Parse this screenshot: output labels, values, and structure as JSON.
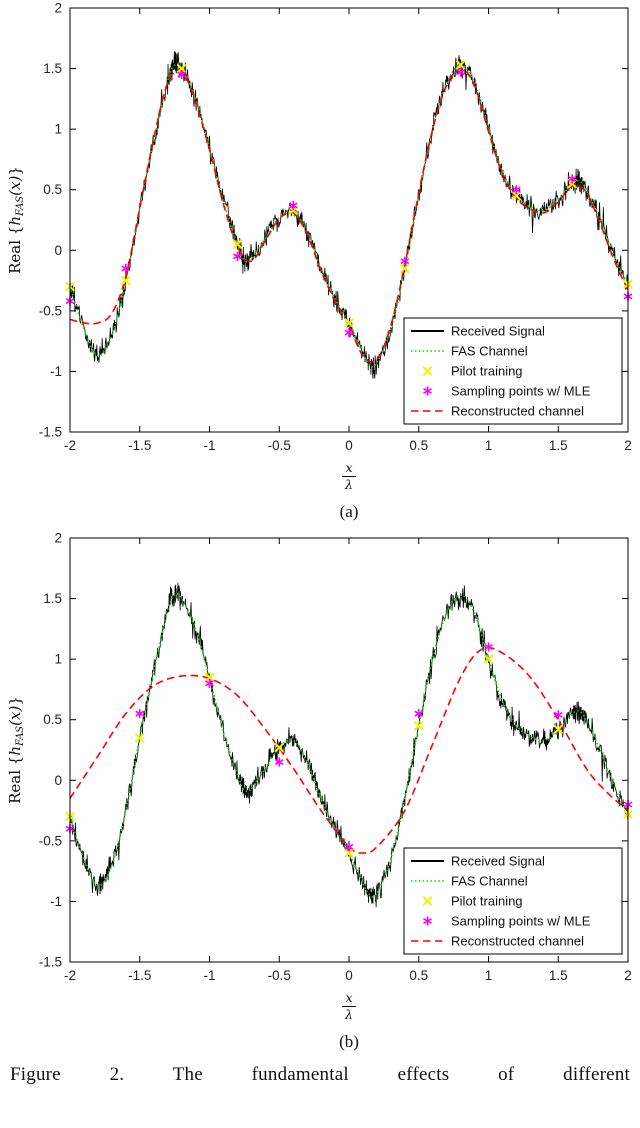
{
  "figure": {
    "caption": "Figure 2.  The fundamental effects of different"
  },
  "chart_data": [
    {
      "type": "line",
      "sublabel": "(a)",
      "xlabel": "x/λ",
      "ylabel": "Real {h_FAS(x)}",
      "xlim": [
        -2,
        2
      ],
      "ylim": [
        -1.5,
        2
      ],
      "xticks": [
        -2,
        -1.5,
        -1,
        -0.5,
        0,
        0.5,
        1,
        1.5,
        2
      ],
      "yticks": [
        -1.5,
        -1,
        -0.5,
        0,
        0.5,
        1,
        1.5,
        2
      ],
      "legend_position": "lower right",
      "grid": false,
      "series": [
        {
          "name": "Received Signal",
          "color": "#000000",
          "line": "solid",
          "width": 0.8,
          "noise": {
            "base": "FAS Channel",
            "amplitude": 0.105
          }
        },
        {
          "name": "FAS Channel",
          "color": "#00dd00",
          "line": "dotted",
          "width": 1.6,
          "x": [
            -2.0,
            -1.9,
            -1.8,
            -1.7,
            -1.6,
            -1.5,
            -1.4,
            -1.3,
            -1.25,
            -1.2,
            -1.1,
            -1.0,
            -0.9,
            -0.8,
            -0.75,
            -0.7,
            -0.6,
            -0.5,
            -0.4,
            -0.3,
            -0.2,
            -0.1,
            0.0,
            0.1,
            0.15,
            0.2,
            0.3,
            0.4,
            0.5,
            0.6,
            0.7,
            0.8,
            0.9,
            1.0,
            1.1,
            1.2,
            1.3,
            1.4,
            1.5,
            1.6,
            1.65,
            1.7,
            1.8,
            1.9,
            2.0
          ],
          "y": [
            -0.3,
            -0.65,
            -0.87,
            -0.7,
            -0.25,
            0.35,
            0.9,
            1.4,
            1.53,
            1.5,
            1.25,
            0.85,
            0.4,
            0.05,
            -0.08,
            -0.07,
            0.1,
            0.27,
            0.33,
            0.15,
            -0.15,
            -0.4,
            -0.6,
            -0.85,
            -0.95,
            -0.93,
            -0.65,
            -0.15,
            0.45,
            1.0,
            1.38,
            1.53,
            1.38,
            1.0,
            0.65,
            0.45,
            0.36,
            0.33,
            0.42,
            0.55,
            0.57,
            0.5,
            0.25,
            -0.05,
            -0.28
          ]
        },
        {
          "name": "Pilot training",
          "color": "#f2f200",
          "marker": "x",
          "x": [
            -2.0,
            -1.6,
            -1.2,
            -0.8,
            -0.4,
            0.0,
            0.4,
            0.8,
            1.2,
            1.6,
            2.0
          ],
          "y": [
            -0.3,
            -0.25,
            1.5,
            0.05,
            0.33,
            -0.6,
            -0.15,
            1.53,
            0.45,
            0.55,
            -0.28
          ]
        },
        {
          "name": "Sampling points w/ MLE",
          "color": "#ff00ff",
          "marker": "*",
          "x": [
            -2.0,
            -1.6,
            -1.2,
            -0.8,
            -0.4,
            0.0,
            0.4,
            0.8,
            1.2,
            1.6,
            2.0
          ],
          "y": [
            -0.42,
            -0.15,
            1.45,
            -0.05,
            0.37,
            -0.68,
            -0.09,
            1.47,
            0.5,
            0.59,
            -0.38
          ]
        },
        {
          "name": "Reconstructed channel",
          "color": "#ff0000",
          "line": "dashed",
          "width": 1.6,
          "x": [
            -2.0,
            -1.9,
            -1.8,
            -1.7,
            -1.6,
            -1.5,
            -1.4,
            -1.3,
            -1.2,
            -1.1,
            -1.0,
            -0.9,
            -0.8,
            -0.7,
            -0.6,
            -0.5,
            -0.4,
            -0.3,
            -0.2,
            -0.1,
            0.0,
            0.1,
            0.2,
            0.3,
            0.4,
            0.5,
            0.6,
            0.7,
            0.8,
            0.9,
            1.0,
            1.1,
            1.2,
            1.3,
            1.4,
            1.5,
            1.6,
            1.7,
            1.8,
            1.9,
            2.0
          ],
          "y": [
            -0.57,
            -0.6,
            -0.6,
            -0.52,
            -0.22,
            0.35,
            0.92,
            1.38,
            1.48,
            1.22,
            0.83,
            0.38,
            0.03,
            -0.09,
            0.08,
            0.26,
            0.31,
            0.13,
            -0.17,
            -0.42,
            -0.62,
            -0.87,
            -0.9,
            -0.62,
            -0.12,
            0.47,
            1.0,
            1.36,
            1.5,
            1.36,
            0.98,
            0.63,
            0.43,
            0.34,
            0.31,
            0.4,
            0.53,
            0.48,
            0.22,
            -0.08,
            -0.33
          ]
        }
      ]
    },
    {
      "type": "line",
      "sublabel": "(b)",
      "xlabel": "x/λ",
      "ylabel": "Real {h_FAS(x)}",
      "xlim": [
        -2,
        2
      ],
      "ylim": [
        -1.5,
        2
      ],
      "xticks": [
        -2,
        -1.5,
        -1,
        -0.5,
        0,
        0.5,
        1,
        1.5,
        2
      ],
      "yticks": [
        -1.5,
        -1,
        -0.5,
        0,
        0.5,
        1,
        1.5,
        2
      ],
      "legend_position": "lower right",
      "grid": false,
      "series": [
        {
          "name": "Received Signal",
          "color": "#000000",
          "line": "solid",
          "width": 0.8,
          "noise": {
            "base": "FAS Channel",
            "amplitude": 0.105
          }
        },
        {
          "name": "FAS Channel",
          "color": "#00dd00",
          "line": "dotted",
          "width": 1.6,
          "x": [
            -2.0,
            -1.9,
            -1.8,
            -1.7,
            -1.6,
            -1.5,
            -1.4,
            -1.3,
            -1.25,
            -1.2,
            -1.1,
            -1.0,
            -0.9,
            -0.8,
            -0.75,
            -0.7,
            -0.6,
            -0.5,
            -0.4,
            -0.3,
            -0.2,
            -0.1,
            0.0,
            0.1,
            0.15,
            0.2,
            0.3,
            0.4,
            0.5,
            0.6,
            0.7,
            0.8,
            0.9,
            1.0,
            1.1,
            1.2,
            1.3,
            1.4,
            1.5,
            1.6,
            1.65,
            1.7,
            1.8,
            1.9,
            2.0
          ],
          "y": [
            -0.3,
            -0.65,
            -0.87,
            -0.7,
            -0.25,
            0.35,
            0.9,
            1.4,
            1.53,
            1.5,
            1.25,
            0.85,
            0.4,
            0.05,
            -0.08,
            -0.07,
            0.1,
            0.27,
            0.33,
            0.15,
            -0.15,
            -0.4,
            -0.6,
            -0.85,
            -0.95,
            -0.93,
            -0.65,
            -0.15,
            0.45,
            1.0,
            1.38,
            1.53,
            1.38,
            1.0,
            0.65,
            0.45,
            0.36,
            0.33,
            0.42,
            0.55,
            0.57,
            0.5,
            0.25,
            -0.05,
            -0.28
          ]
        },
        {
          "name": "Pilot training",
          "color": "#f2f200",
          "marker": "x",
          "x": [
            -2.0,
            -1.5,
            -1.0,
            -0.5,
            0.0,
            0.5,
            1.0,
            1.5,
            2.0
          ],
          "y": [
            -0.3,
            0.35,
            0.85,
            0.27,
            -0.6,
            0.45,
            1.0,
            0.42,
            -0.28
          ]
        },
        {
          "name": "Sampling points w/ MLE",
          "color": "#ff00ff",
          "marker": "*",
          "x": [
            -2.0,
            -1.5,
            -1.0,
            -0.5,
            0.0,
            0.5,
            1.0,
            1.5,
            2.0
          ],
          "y": [
            -0.4,
            0.55,
            0.8,
            0.15,
            -0.55,
            0.55,
            1.1,
            0.54,
            -0.2
          ]
        },
        {
          "name": "Reconstructed channel",
          "color": "#ff0000",
          "line": "dashed",
          "width": 1.6,
          "x": [
            -2.0,
            -1.8,
            -1.6,
            -1.4,
            -1.2,
            -1.0,
            -0.8,
            -0.6,
            -0.4,
            -0.2,
            0.0,
            0.1,
            0.2,
            0.4,
            0.6,
            0.8,
            0.95,
            1.1,
            1.3,
            1.5,
            1.7,
            1.85,
            2.0
          ],
          "y": [
            -0.15,
            0.2,
            0.55,
            0.78,
            0.86,
            0.84,
            0.7,
            0.42,
            0.1,
            -0.25,
            -0.55,
            -0.6,
            -0.55,
            -0.25,
            0.3,
            0.85,
            1.08,
            1.05,
            0.85,
            0.5,
            0.1,
            -0.1,
            -0.25
          ]
        }
      ]
    }
  ]
}
